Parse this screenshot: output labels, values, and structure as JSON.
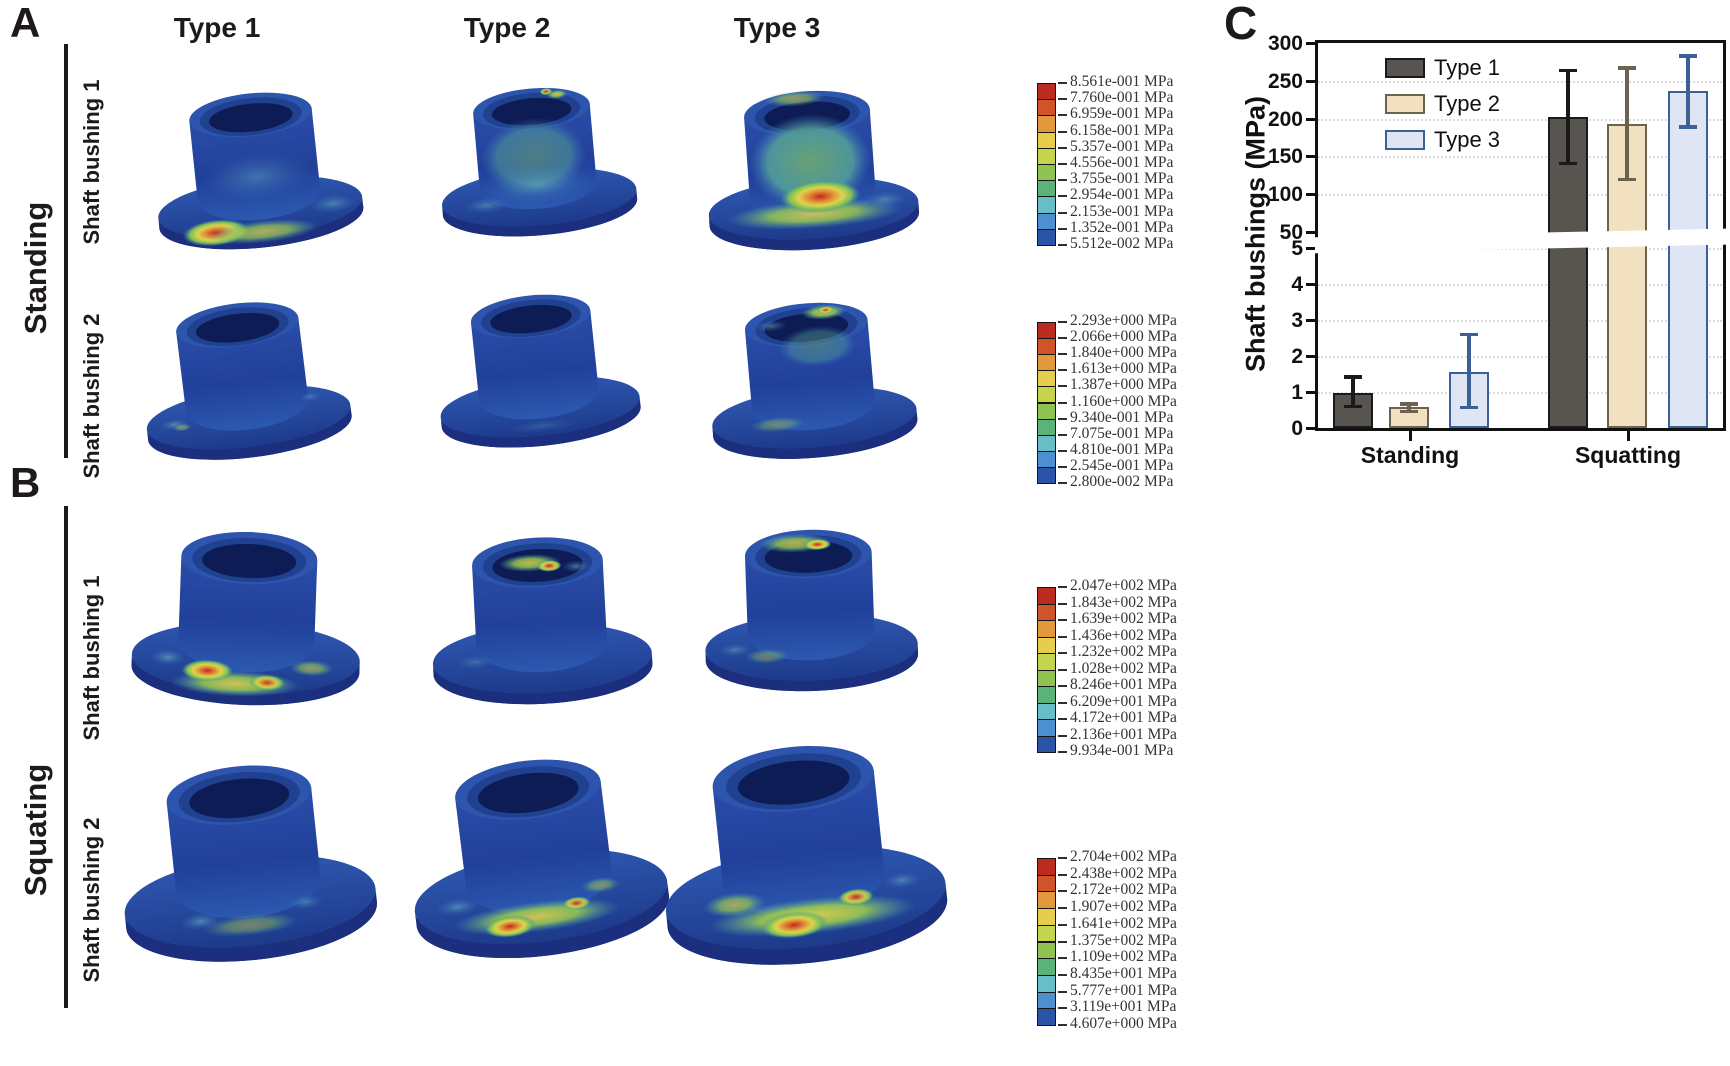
{
  "figure": {
    "panel_a_marker": "A",
    "panel_b_marker": "B",
    "panel_c_marker": "C",
    "column_headers": [
      "Type 1",
      "Type 2",
      "Type 3"
    ],
    "panel_a": {
      "group_label": "Standing",
      "row_labels": [
        "Shaft bushing 1",
        "Shaft bushing 2"
      ]
    },
    "panel_b": {
      "group_label": "Squating",
      "row_labels": [
        "Shaft bushing 1",
        "Shaft bushing 2"
      ]
    }
  },
  "colorbar_colors": [
    "#bb2b20",
    "#d0542a",
    "#e2993c",
    "#e7cd4d",
    "#c5d44d",
    "#8fc351",
    "#5cb37a",
    "#67bec6",
    "#4d90cf",
    "#2b53a8"
  ],
  "colorbars": [
    {
      "name": "standing-shaft-bushing-1",
      "unit": "MPa",
      "tick_labels": [
        "8.561e-001",
        "7.760e-001",
        "6.959e-001",
        "6.158e-001",
        "5.357e-001",
        "4.556e-001",
        "3.755e-001",
        "2.954e-001",
        "2.153e-001",
        "1.352e-001",
        "5.512e-002"
      ]
    },
    {
      "name": "standing-shaft-bushing-2",
      "unit": "MPa",
      "tick_labels": [
        "2.293e+000",
        "2.066e+000",
        "1.840e+000",
        "1.613e+000",
        "1.387e+000",
        "1.160e+000",
        "9.340e-001",
        "7.075e-001",
        "4.810e-001",
        "2.545e-001",
        "2.800e-002"
      ]
    },
    {
      "name": "squating-shaft-bushing-1",
      "unit": "MPa",
      "tick_labels": [
        "2.047e+002",
        "1.843e+002",
        "1.639e+002",
        "1.436e+002",
        "1.232e+002",
        "1.028e+002",
        "8.246e+001",
        "6.209e+001",
        "4.172e+001",
        "2.136e+001",
        "9.934e-001"
      ]
    },
    {
      "name": "squating-shaft-bushing-2",
      "unit": "MPa",
      "tick_labels": [
        "2.704e+002",
        "2.438e+002",
        "2.172e+002",
        "1.907e+002",
        "1.641e+002",
        "1.375e+002",
        "1.109e+002",
        "8.435e+001",
        "5.777e+001",
        "3.119e+001",
        "4.607e+000"
      ]
    }
  ],
  "chart_data": {
    "type": "bar",
    "title": "",
    "categories": [
      "Standing",
      "Squatting"
    ],
    "series": [
      {
        "name": "Type 1",
        "values": [
          0.97,
          202
        ],
        "error_low": [
          0.6,
          141
        ],
        "error_high": [
          1.42,
          264
        ],
        "fill": "#585450",
        "edge": "#1a1a1a"
      },
      {
        "name": "Type 2",
        "values": [
          0.57,
          193
        ],
        "error_low": [
          0.47,
          120
        ],
        "error_high": [
          0.68,
          267
        ],
        "fill": "#f2e1c0",
        "edge": "#6b6350"
      },
      {
        "name": "Type 3",
        "values": [
          1.56,
          236
        ],
        "error_low": [
          0.57,
          189
        ],
        "error_high": [
          2.6,
          283
        ],
        "fill": "#dfe5f3",
        "edge": "#3a6096"
      }
    ],
    "ylabel": "Shaft bushings (MPa)",
    "axis_break": {
      "lower_range": [
        0,
        5
      ],
      "lower_ticks": [
        0,
        1,
        2,
        3,
        4,
        5
      ],
      "upper_range": [
        50,
        300
      ],
      "upper_ticks": [
        50,
        100,
        150,
        200,
        250,
        300
      ]
    },
    "legend_position": "top-left-inside",
    "grid": "dotted-horizontal"
  }
}
